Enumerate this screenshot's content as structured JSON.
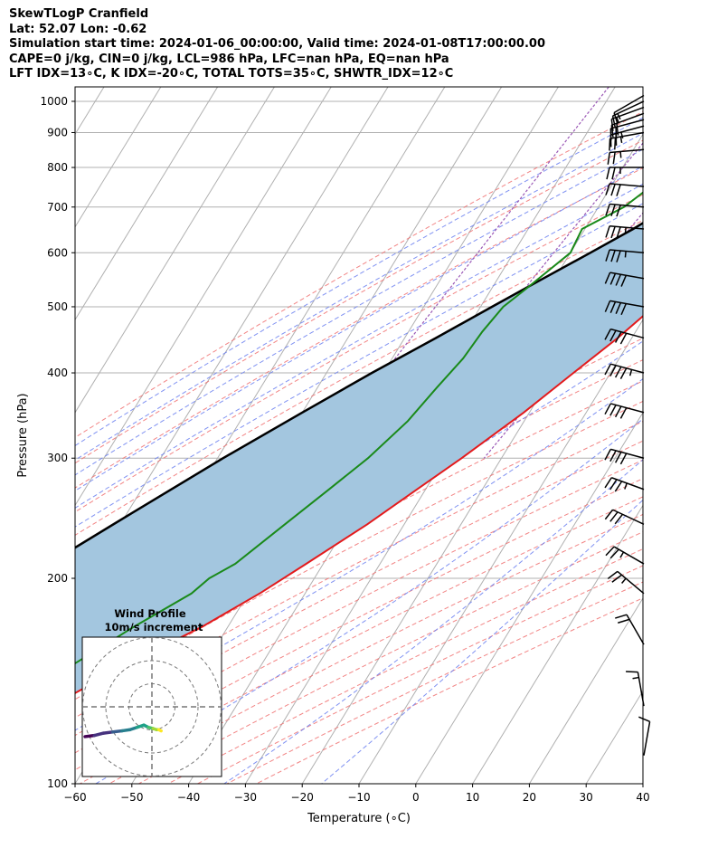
{
  "header": {
    "line1": "SkewTLogP Cranfield",
    "line2": "Lat: 52.07   Lon: -0.62",
    "line3": "Simulation start time: 2024-01-06_00:00:00, Valid time: 2024-01-08T17:00:00.00",
    "line4": "CAPE=0 j/kg, CIN=0 j/kg, LCL=986 hPa, LFC=nan hPa, EQ=nan hPa",
    "line5": "LFT IDX=13∘C, K IDX=-20∘C, TOTAL TOTS=35∘C, SHWTR_IDX=12∘C"
  },
  "colors": {
    "temperature": "#e31a1c",
    "dewpoint": "#1a8a1a",
    "parcel": "#000000",
    "cin_fill": "#a3c6df",
    "dry_adiabat": "#f07070",
    "moist_adiabat": "#6a7ff0",
    "mixing_ratio": "#9b59b6",
    "isotherm": "#b0b0b0"
  },
  "chart_data": {
    "type": "skew-t",
    "xlabel": "Temperature (∘C)",
    "ylabel": "Pressure (hPa)",
    "xlim": [
      -60,
      40
    ],
    "ylim": [
      1050,
      100
    ],
    "y_scale": "log",
    "x_ticks": [
      "−60",
      "−50",
      "−40",
      "−30",
      "−20",
      "−10",
      "0",
      "10",
      "20",
      "30",
      "40"
    ],
    "y_ticks": [
      "1000",
      "900",
      "800",
      "700",
      "600",
      "500",
      "400",
      "300",
      "200",
      "100"
    ],
    "x_tick_values": [
      -60,
      -50,
      -40,
      -30,
      -20,
      -10,
      0,
      10,
      20,
      30,
      40
    ],
    "y_tick_values": [
      1000,
      900,
      800,
      700,
      600,
      500,
      400,
      300,
      200,
      100
    ],
    "grid": true,
    "temperature": {
      "p": [
        1020,
        1000,
        960,
        920,
        880,
        850,
        800,
        750,
        700,
        650,
        600,
        560,
        500,
        450,
        400,
        350,
        300,
        270,
        240,
        210,
        190,
        170,
        150,
        130,
        115,
        100
      ],
      "t": [
        1.0,
        -0.5,
        -1.5,
        -2.0,
        -1.5,
        -1.0,
        -1.5,
        -2.0,
        -3.0,
        -4.5,
        -5.5,
        -6.5,
        -9.5,
        -12.5,
        -16.5,
        -21.0,
        -27.0,
        -31.5,
        -36.5,
        -43.0,
        -48.0,
        -54.5,
        -63.5,
        -72.5,
        -80.0,
        -89.0
      ]
    },
    "dewpoint": {
      "p": [
        1010,
        1000,
        960,
        900,
        880,
        850,
        800,
        760,
        700,
        650,
        600,
        530,
        500,
        460,
        420,
        380,
        340,
        300,
        270,
        240,
        210,
        200,
        190,
        170,
        150,
        130,
        115,
        100
      ],
      "td": [
        -1.5,
        -1.5,
        -2.5,
        -4.0,
        -6.0,
        -12.0,
        -23.0,
        -22.5,
        -25.5,
        -30.5,
        -30.0,
        -34.0,
        -36.0,
        -37.0,
        -37.5,
        -39.0,
        -40.5,
        -43.5,
        -47.0,
        -51.0,
        -55.5,
        -58.5,
        -60.0,
        -66.5,
        -73.0,
        -80.0,
        -87.0,
        -94.0
      ]
    },
    "parcel": {
      "p": [
        1020,
        986,
        950,
        900,
        850,
        800,
        750,
        700,
        650,
        600,
        550,
        500,
        450,
        400,
        350,
        300,
        250,
        200,
        150,
        100
      ],
      "t": [
        0.5,
        -1.0,
        -2.5,
        -4.5,
        -7.0,
        -10.0,
        -13.5,
        -17.5,
        -21.5,
        -26.5,
        -32.0,
        -38.0,
        -44.5,
        -52.0,
        -60.0,
        -69.0,
        -79.0,
        -91.0,
        -106.0,
        -126.0
      ]
    },
    "winds": {
      "p": [
        1020,
        1000,
        980,
        960,
        940,
        920,
        900,
        850,
        800,
        750,
        700,
        650,
        600,
        550,
        500,
        450,
        400,
        350,
        300,
        270,
        240,
        210,
        190,
        160,
        130,
        110
      ],
      "dir_deg": [
        240,
        245,
        250,
        250,
        255,
        255,
        260,
        265,
        270,
        275,
        275,
        275,
        275,
        280,
        280,
        285,
        285,
        285,
        285,
        290,
        295,
        300,
        310,
        330,
        350,
        10
      ],
      "speed_kt": [
        10,
        15,
        15,
        20,
        20,
        25,
        25,
        25,
        25,
        30,
        30,
        35,
        35,
        40,
        40,
        40,
        45,
        40,
        40,
        35,
        30,
        25,
        25,
        20,
        15,
        10
      ]
    },
    "hodograph": {
      "title_line1": "Wind Profile",
      "title_line2": "10m/s increment",
      "rings_ms": [
        10,
        20,
        30
      ],
      "u_ms": [
        -29.0,
        -25.0,
        -21.0,
        -17.0,
        -13.0,
        -9.5,
        -6.5,
        -3.5,
        -1.5,
        0.5,
        2.0,
        3.0,
        4.0
      ],
      "v_ms": [
        -3.5,
        -3.0,
        -2.0,
        -1.5,
        -1.0,
        -0.5,
        0.5,
        1.5,
        0.5,
        0.0,
        -0.5,
        -0.5,
        -1.0
      ]
    }
  }
}
